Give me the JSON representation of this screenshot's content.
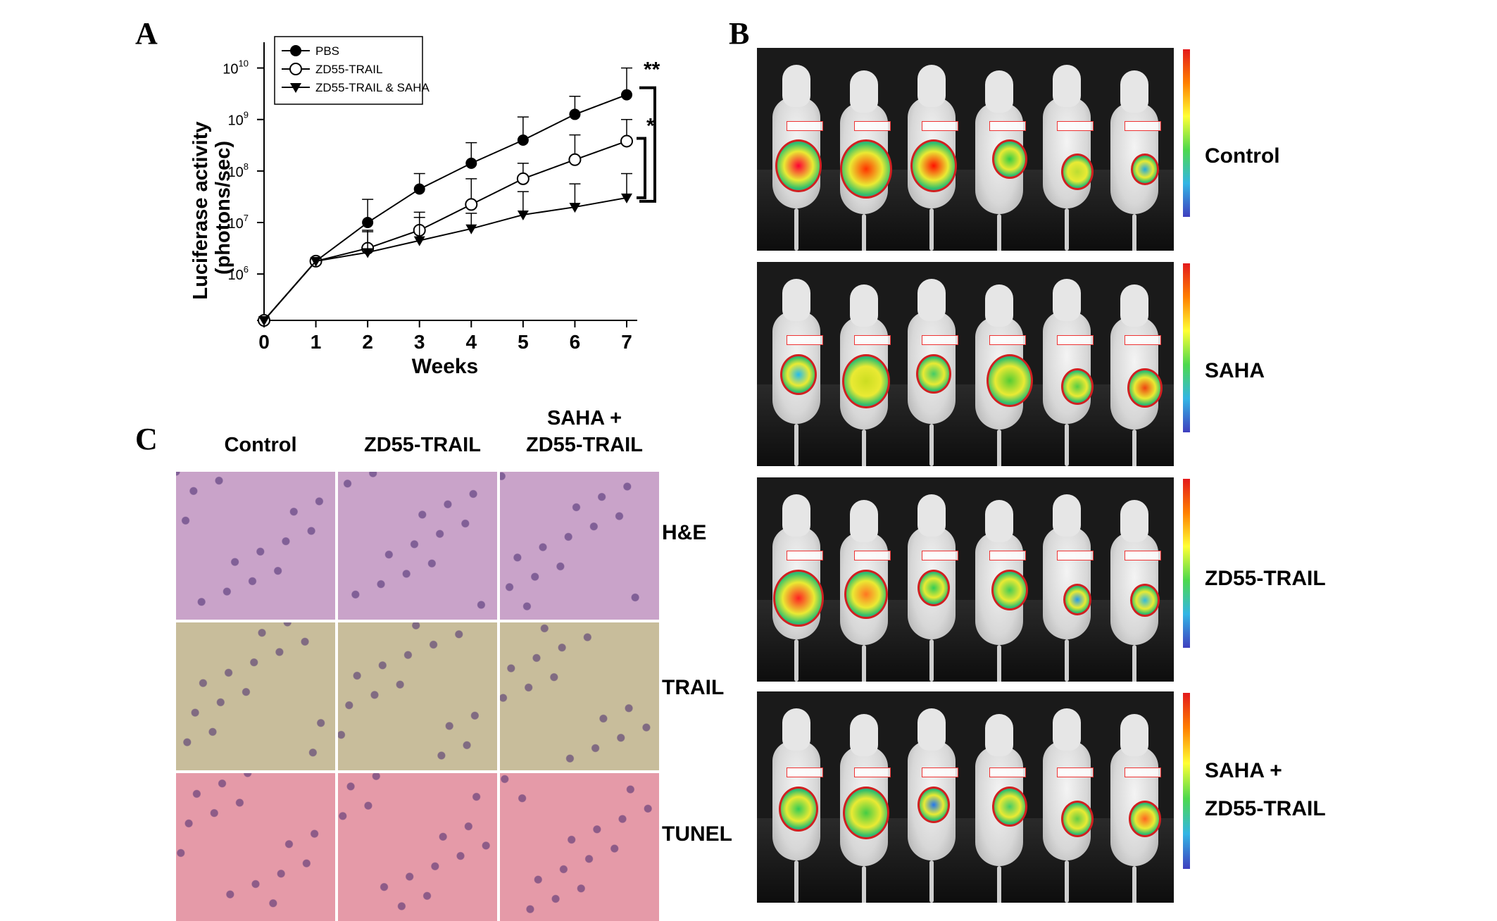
{
  "panels": {
    "a": "A",
    "b": "B",
    "c": "C"
  },
  "chart_data": {
    "type": "line",
    "xlabel": "Weeks",
    "ylabel": "Luciferase activity (photons/sec)",
    "ylabel_lines": [
      "Luciferase activity",
      "(photons/sec)"
    ],
    "x": [
      0,
      1,
      2,
      3,
      4,
      5,
      6,
      7
    ],
    "x_ticks": [
      "0",
      "1",
      "2",
      "3",
      "4",
      "5",
      "6",
      "7"
    ],
    "y_scale": "log",
    "ylim_log10": [
      5.1,
      10.5
    ],
    "y_ticks": [
      {
        "base": "10",
        "exp": "6",
        "log10": 6
      },
      {
        "base": "10",
        "exp": "7",
        "log10": 7
      },
      {
        "base": "10",
        "exp": "8",
        "log10": 8
      },
      {
        "base": "10",
        "exp": "9",
        "log10": 9
      },
      {
        "base": "10",
        "exp": "10",
        "log10": 10
      }
    ],
    "series": [
      {
        "name": "PBS",
        "marker": "filled-circle",
        "log10_values": [
          5.1,
          6.25,
          7.0,
          7.65,
          8.15,
          8.6,
          9.1,
          9.48
        ],
        "log10_upper": [
          null,
          null,
          7.45,
          7.95,
          8.55,
          9.05,
          9.45,
          10.0
        ]
      },
      {
        "name": "ZD55-TRAIL",
        "marker": "open-circle",
        "log10_values": [
          5.1,
          6.25,
          6.5,
          6.85,
          7.35,
          7.85,
          8.22,
          8.58
        ],
        "log10_upper": [
          null,
          null,
          6.85,
          7.2,
          7.85,
          8.15,
          8.7,
          9.0
        ]
      },
      {
        "name": "ZD55-TRAIL & SAHA",
        "marker": "filled-triangle-down",
        "log10_values": [
          5.1,
          6.25,
          6.42,
          6.65,
          6.88,
          7.15,
          7.3,
          7.48
        ],
        "log10_upper": [
          null,
          null,
          6.82,
          7.1,
          7.18,
          7.6,
          7.75,
          7.95
        ]
      }
    ],
    "legend_position": "top-left",
    "significance": [
      "**",
      "*"
    ],
    "grid": false
  },
  "histology": {
    "columns": [
      "Control",
      "ZD55-TRAIL",
      "SAHA +",
      "ZD55-TRAIL"
    ],
    "rows": [
      "H&E",
      "TRAIL",
      "TUNEL"
    ],
    "stain_colors": [
      "#c9a3c9",
      "#c8bd9b",
      "#e59aa8"
    ]
  },
  "imaging": {
    "groups": [
      "Control",
      "SAHA",
      "ZD55-TRAIL",
      "SAHA +",
      "ZD55-TRAIL"
    ]
  }
}
